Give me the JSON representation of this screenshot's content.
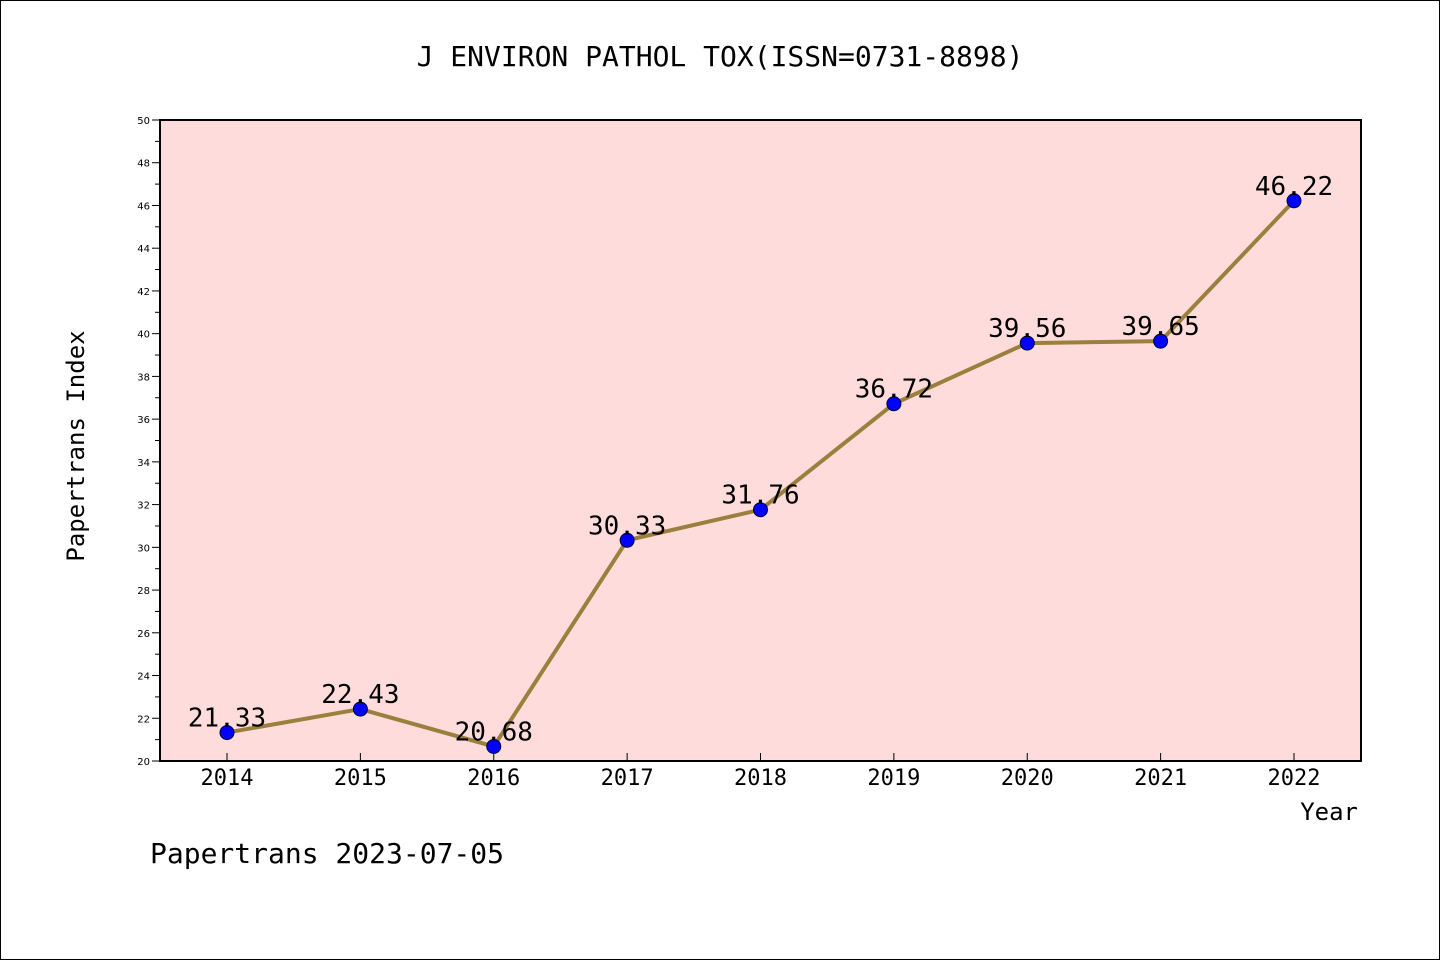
{
  "chart_data": {
    "type": "line",
    "title": "J ENVIRON PATHOL TOX(ISSN=0731-8898)",
    "xlabel": "Year",
    "ylabel": "Papertrans Index",
    "x": [
      "2014",
      "2015",
      "2016",
      "2017",
      "2018",
      "2019",
      "2020",
      "2021",
      "2022"
    ],
    "series": [
      {
        "values": [
          21.33,
          22.43,
          20.68,
          30.33,
          31.76,
          36.72,
          39.56,
          39.65,
          46.22
        ]
      }
    ],
    "data_labels": [
      "21.33",
      "22.43",
      "20.68",
      "30.33",
      "31.76",
      "36.72",
      "39.56",
      "39.65",
      "46.22"
    ],
    "ylim": [
      20,
      50
    ],
    "yticks": [
      "20",
      "22",
      "24",
      "26",
      "28",
      "30",
      "32",
      "34",
      "36",
      "38",
      "40",
      "42",
      "44",
      "46",
      "48",
      "50"
    ],
    "grid": false,
    "legend": "none",
    "colors": {
      "plot_background": "#ffdcdc",
      "line": "#9b7f3c",
      "marker": "#0000ff",
      "axis": "#000000"
    }
  },
  "footer": "Papertrans 2023-07-05"
}
